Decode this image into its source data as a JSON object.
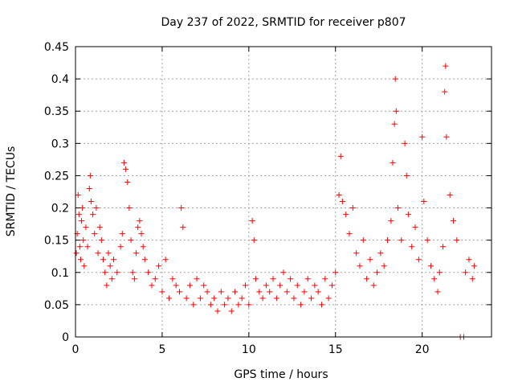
{
  "chart_data": {
    "type": "scatter",
    "title": "Day 237 of 2022, SRMTID for receiver p807",
    "xlabel": "GPS time / hours",
    "ylabel": "SRMTID / TECUs",
    "xlim": [
      0,
      24
    ],
    "ylim": [
      0,
      0.45
    ],
    "x_ticks": [
      0,
      5,
      10,
      15,
      20
    ],
    "x_tick_labels": [
      "0",
      "5",
      "10",
      "15",
      "20"
    ],
    "y_ticks": [
      0,
      0.05,
      0.1,
      0.15,
      0.2,
      0.25,
      0.3,
      0.35,
      0.4,
      0.45
    ],
    "y_tick_labels": [
      "0",
      "0.05",
      "0.1",
      "0.15",
      "0.2",
      "0.25",
      "0.3",
      "0.35",
      "0.4",
      "0.45"
    ],
    "grid": true,
    "marker": "plus",
    "color": "#ff0000",
    "series": [
      {
        "name": "SRMTID",
        "points": [
          [
            0.05,
            0.13
          ],
          [
            0.1,
            0.16
          ],
          [
            0.15,
            0.22
          ],
          [
            0.2,
            0.19
          ],
          [
            0.25,
            0.14
          ],
          [
            0.3,
            0.12
          ],
          [
            0.35,
            0.18
          ],
          [
            0.4,
            0.2
          ],
          [
            0.45,
            0.15
          ],
          [
            0.5,
            0.11
          ],
          [
            0.6,
            0.17
          ],
          [
            0.7,
            0.14
          ],
          [
            0.8,
            0.23
          ],
          [
            0.85,
            0.25
          ],
          [
            0.9,
            0.21
          ],
          [
            1.0,
            0.19
          ],
          [
            1.1,
            0.16
          ],
          [
            1.2,
            0.2
          ],
          [
            1.3,
            0.13
          ],
          [
            1.4,
            0.17
          ],
          [
            1.5,
            0.15
          ],
          [
            1.6,
            0.12
          ],
          [
            1.7,
            0.1
          ],
          [
            1.8,
            0.08
          ],
          [
            1.9,
            0.13
          ],
          [
            2.0,
            0.11
          ],
          [
            2.1,
            0.09
          ],
          [
            2.2,
            0.12
          ],
          [
            2.4,
            0.1
          ],
          [
            2.6,
            0.14
          ],
          [
            2.7,
            0.16
          ],
          [
            2.8,
            0.27
          ],
          [
            2.9,
            0.26
          ],
          [
            3.0,
            0.24
          ],
          [
            3.1,
            0.2
          ],
          [
            3.2,
            0.15
          ],
          [
            3.3,
            0.1
          ],
          [
            3.4,
            0.09
          ],
          [
            3.5,
            0.13
          ],
          [
            3.6,
            0.17
          ],
          [
            3.7,
            0.18
          ],
          [
            3.8,
            0.16
          ],
          [
            3.9,
            0.14
          ],
          [
            4.0,
            0.12
          ],
          [
            4.2,
            0.1
          ],
          [
            4.4,
            0.08
          ],
          [
            4.6,
            0.09
          ],
          [
            4.8,
            0.11
          ],
          [
            5.0,
            0.07
          ],
          [
            5.2,
            0.12
          ],
          [
            5.4,
            0.06
          ],
          [
            5.6,
            0.09
          ],
          [
            5.8,
            0.08
          ],
          [
            6.0,
            0.07
          ],
          [
            6.1,
            0.2
          ],
          [
            6.2,
            0.17
          ],
          [
            6.4,
            0.06
          ],
          [
            6.6,
            0.08
          ],
          [
            6.8,
            0.05
          ],
          [
            7.0,
            0.09
          ],
          [
            7.2,
            0.06
          ],
          [
            7.4,
            0.08
          ],
          [
            7.6,
            0.07
          ],
          [
            7.8,
            0.05
          ],
          [
            8.0,
            0.06
          ],
          [
            8.2,
            0.04
          ],
          [
            8.4,
            0.07
          ],
          [
            8.6,
            0.05
          ],
          [
            8.8,
            0.06
          ],
          [
            9.0,
            0.04
          ],
          [
            9.2,
            0.07
          ],
          [
            9.4,
            0.05
          ],
          [
            9.6,
            0.06
          ],
          [
            9.8,
            0.08
          ],
          [
            10.0,
            0.05
          ],
          [
            10.2,
            0.18
          ],
          [
            10.3,
            0.15
          ],
          [
            10.4,
            0.09
          ],
          [
            10.6,
            0.07
          ],
          [
            10.8,
            0.06
          ],
          [
            11.0,
            0.08
          ],
          [
            11.2,
            0.07
          ],
          [
            11.4,
            0.09
          ],
          [
            11.6,
            0.06
          ],
          [
            11.8,
            0.08
          ],
          [
            12.0,
            0.1
          ],
          [
            12.2,
            0.07
          ],
          [
            12.4,
            0.09
          ],
          [
            12.6,
            0.06
          ],
          [
            12.8,
            0.08
          ],
          [
            13.0,
            0.05
          ],
          [
            13.2,
            0.07
          ],
          [
            13.4,
            0.09
          ],
          [
            13.6,
            0.06
          ],
          [
            13.8,
            0.08
          ],
          [
            14.0,
            0.07
          ],
          [
            14.2,
            0.05
          ],
          [
            14.4,
            0.09
          ],
          [
            14.6,
            0.06
          ],
          [
            14.8,
            0.08
          ],
          [
            15.0,
            0.1
          ],
          [
            15.2,
            0.22
          ],
          [
            15.3,
            0.28
          ],
          [
            15.4,
            0.21
          ],
          [
            15.6,
            0.19
          ],
          [
            15.8,
            0.16
          ],
          [
            16.0,
            0.2
          ],
          [
            16.2,
            0.13
          ],
          [
            16.4,
            0.11
          ],
          [
            16.6,
            0.15
          ],
          [
            16.8,
            0.09
          ],
          [
            17.0,
            0.12
          ],
          [
            17.2,
            0.08
          ],
          [
            17.4,
            0.1
          ],
          [
            17.6,
            0.13
          ],
          [
            17.8,
            0.11
          ],
          [
            18.0,
            0.15
          ],
          [
            18.2,
            0.18
          ],
          [
            18.3,
            0.27
          ],
          [
            18.4,
            0.33
          ],
          [
            18.45,
            0.4
          ],
          [
            18.5,
            0.35
          ],
          [
            18.6,
            0.2
          ],
          [
            18.8,
            0.15
          ],
          [
            19.0,
            0.3
          ],
          [
            19.1,
            0.25
          ],
          [
            19.2,
            0.19
          ],
          [
            19.4,
            0.14
          ],
          [
            19.6,
            0.17
          ],
          [
            19.8,
            0.12
          ],
          [
            20.0,
            0.31
          ],
          [
            20.1,
            0.21
          ],
          [
            20.3,
            0.15
          ],
          [
            20.5,
            0.11
          ],
          [
            20.7,
            0.09
          ],
          [
            20.9,
            0.07
          ],
          [
            21.0,
            0.1
          ],
          [
            21.2,
            0.14
          ],
          [
            21.3,
            0.38
          ],
          [
            21.35,
            0.42
          ],
          [
            21.4,
            0.31
          ],
          [
            21.6,
            0.22
          ],
          [
            21.8,
            0.18
          ],
          [
            22.0,
            0.15
          ],
          [
            22.2,
            0.0
          ],
          [
            22.4,
            0.0
          ],
          [
            22.5,
            0.1
          ],
          [
            22.7,
            0.12
          ],
          [
            22.9,
            0.09
          ],
          [
            23.0,
            0.11
          ]
        ]
      }
    ]
  }
}
